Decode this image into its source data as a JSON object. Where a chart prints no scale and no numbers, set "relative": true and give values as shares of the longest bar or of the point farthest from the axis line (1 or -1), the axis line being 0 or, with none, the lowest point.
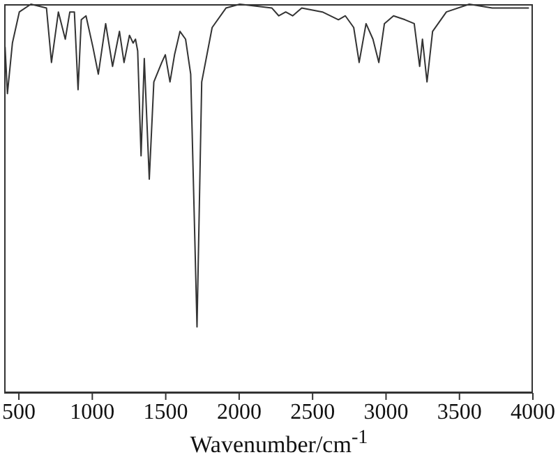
{
  "chart_data": {
    "type": "line",
    "relative": true,
    "xlabel": "Wavenumber/cm$^{-1}$",
    "xlim": [
      400,
      4000
    ],
    "xticks": [
      500,
      1000,
      1500,
      2000,
      2500,
      3000,
      3500,
      4000
    ],
    "legend": false,
    "marker": "none",
    "series": [
      {
        "color": "#333333",
        "x": [
          406,
          422,
          456,
          503,
          582,
          688,
          722,
          769,
          816,
          847,
          878,
          903,
          925,
          957,
          1004,
          1041,
          1091,
          1138,
          1185,
          1216,
          1253,
          1278,
          1294,
          1309,
          1332,
          1354,
          1388,
          1419,
          1473,
          1497,
          1529,
          1560,
          1597,
          1635,
          1670,
          1713,
          1745,
          1816,
          1910,
          2004,
          2223,
          2270,
          2317,
          2364,
          2426,
          2567,
          2676,
          2723,
          2780,
          2817,
          2864,
          2911,
          2951,
          2989,
          3051,
          3129,
          3192,
          3229,
          3248,
          3279,
          3317,
          3411,
          3567,
          3723,
          3973
        ],
        "values": [
          0.89,
          0.77,
          0.9,
          0.98,
          1.0,
          0.99,
          0.85,
          0.98,
          0.91,
          0.98,
          0.98,
          0.78,
          0.96,
          0.97,
          0.89,
          0.82,
          0.95,
          0.84,
          0.93,
          0.85,
          0.92,
          0.9,
          0.91,
          0.88,
          0.61,
          0.86,
          0.55,
          0.8,
          0.85,
          0.87,
          0.8,
          0.87,
          0.93,
          0.91,
          0.82,
          0.17,
          0.8,
          0.94,
          0.99,
          1.0,
          0.99,
          0.97,
          0.98,
          0.97,
          0.99,
          0.98,
          0.96,
          0.97,
          0.94,
          0.85,
          0.95,
          0.91,
          0.85,
          0.95,
          0.97,
          0.96,
          0.95,
          0.84,
          0.91,
          0.8,
          0.93,
          0.98,
          1.0,
          0.99,
          0.99
        ]
      }
    ]
  }
}
